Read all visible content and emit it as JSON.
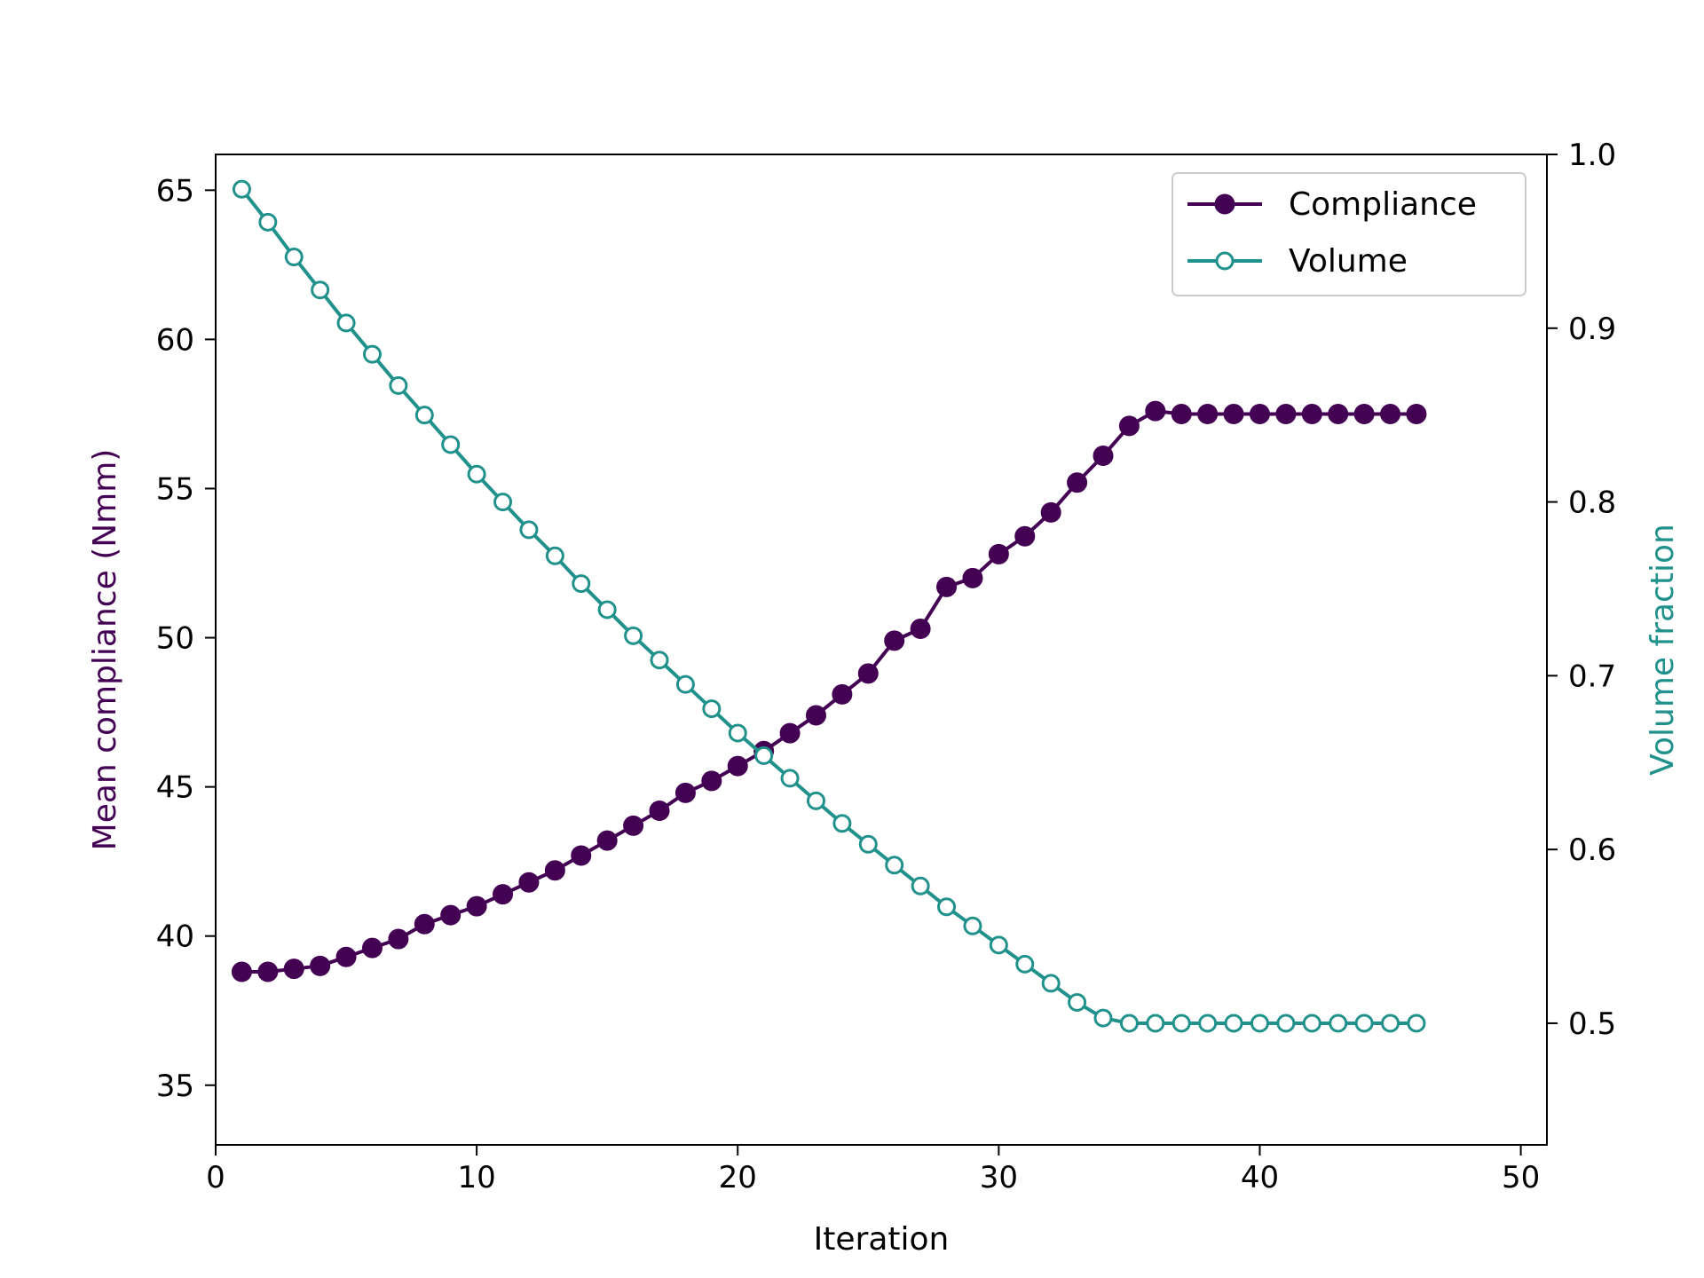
{
  "chart_data": {
    "type": "line",
    "title": "",
    "xlabel": "Iteration",
    "ylabel_left": "Mean compliance (Nmm)",
    "ylabel_right": "Volume fraction",
    "xlim": [
      0,
      51
    ],
    "ylim_left": [
      33,
      66.2
    ],
    "ylim_right": [
      0.43,
      1.0
    ],
    "x_ticks": [
      0,
      10,
      20,
      30,
      40,
      50
    ],
    "y_left_ticks": [
      35,
      40,
      45,
      50,
      55,
      60,
      65
    ],
    "y_right_ticks": [
      0.5,
      0.6,
      0.7,
      0.8,
      0.9,
      1.0
    ],
    "grid": false,
    "legend_position": "top-right",
    "x": [
      1,
      2,
      3,
      4,
      5,
      6,
      7,
      8,
      9,
      10,
      11,
      12,
      13,
      14,
      15,
      16,
      17,
      18,
      19,
      20,
      21,
      22,
      23,
      24,
      25,
      26,
      27,
      28,
      29,
      30,
      31,
      32,
      33,
      34,
      35,
      36,
      37,
      38,
      39,
      40,
      41,
      42,
      43,
      44,
      45,
      46
    ],
    "series": [
      {
        "name": "Compliance",
        "axis": "left",
        "color": "#440154",
        "marker": "filled-circle",
        "values": [
          38.8,
          38.8,
          38.9,
          39.0,
          39.3,
          39.6,
          39.9,
          40.4,
          40.7,
          41.0,
          41.4,
          41.8,
          42.2,
          42.7,
          43.2,
          43.7,
          44.2,
          44.8,
          45.2,
          45.7,
          46.2,
          46.8,
          47.4,
          48.1,
          48.8,
          49.9,
          50.3,
          51.7,
          52.0,
          52.8,
          53.4,
          54.2,
          55.2,
          56.1,
          57.1,
          57.6,
          57.5,
          57.5,
          57.5,
          57.5,
          57.5,
          57.5,
          57.5,
          57.5,
          57.5,
          57.5
        ]
      },
      {
        "name": "Volume",
        "axis": "right",
        "color": "#21918c",
        "marker": "hollow-circle",
        "values": [
          0.98,
          0.961,
          0.941,
          0.922,
          0.903,
          0.885,
          0.867,
          0.85,
          0.833,
          0.816,
          0.8,
          0.784,
          0.769,
          0.753,
          0.738,
          0.723,
          0.709,
          0.695,
          0.681,
          0.667,
          0.654,
          0.641,
          0.628,
          0.615,
          0.603,
          0.591,
          0.579,
          0.567,
          0.556,
          0.545,
          0.534,
          0.523,
          0.512,
          0.503,
          0.5,
          0.5,
          0.5,
          0.5,
          0.5,
          0.5,
          0.5,
          0.5,
          0.5,
          0.5,
          0.5,
          0.5
        ]
      }
    ]
  }
}
